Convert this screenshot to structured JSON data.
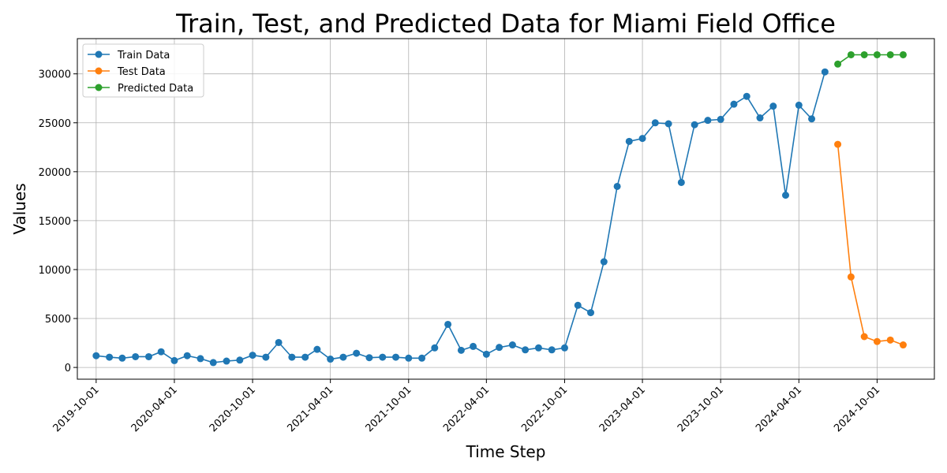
{
  "chart_data": {
    "type": "line",
    "title": "Train, Test, and Predicted Data for Miami Field Office",
    "xlabel": "Time Step",
    "ylabel": "Values",
    "x_ticks": [
      "2019-10-01",
      "2020-04-01",
      "2020-10-01",
      "2021-04-01",
      "2021-10-01",
      "2022-04-01",
      "2022-10-01",
      "2023-04-01",
      "2023-10-01",
      "2024-04-01",
      "2024-10-01"
    ],
    "y_ticks": [
      0,
      5000,
      10000,
      15000,
      20000,
      25000,
      30000
    ],
    "y_tick_labels": [
      "0",
      "5000",
      "10000",
      "15000",
      "20000",
      "25000",
      "30000"
    ],
    "xlim": [
      "2019-08-18",
      "2025-02-12"
    ],
    "ylim": [
      -1200,
      33600
    ],
    "grid": true,
    "legend_position": "top-left",
    "series": [
      {
        "name": "Train Data",
        "color": "#1f77b4",
        "x": [
          "2019-10-01",
          "2019-11-01",
          "2019-12-01",
          "2020-01-01",
          "2020-02-01",
          "2020-03-01",
          "2020-04-01",
          "2020-05-01",
          "2020-06-01",
          "2020-07-01",
          "2020-08-01",
          "2020-09-01",
          "2020-10-01",
          "2020-11-01",
          "2020-12-01",
          "2021-01-01",
          "2021-02-01",
          "2021-03-01",
          "2021-04-01",
          "2021-05-01",
          "2021-06-01",
          "2021-07-01",
          "2021-08-01",
          "2021-09-01",
          "2021-10-01",
          "2021-11-01",
          "2021-12-01",
          "2022-01-01",
          "2022-02-01",
          "2022-03-01",
          "2022-04-01",
          "2022-05-01",
          "2022-06-01",
          "2022-07-01",
          "2022-08-01",
          "2022-09-01",
          "2022-10-01",
          "2022-11-01",
          "2022-12-01",
          "2023-01-01",
          "2023-02-01",
          "2023-03-01",
          "2023-04-01",
          "2023-05-01",
          "2023-06-01",
          "2023-07-01",
          "2023-08-01",
          "2023-09-01",
          "2023-10-01",
          "2023-11-01",
          "2023-12-01",
          "2024-01-01",
          "2024-02-01",
          "2024-03-01",
          "2024-04-01",
          "2024-05-01",
          "2024-06-01"
        ],
        "values": [
          1200,
          1050,
          950,
          1100,
          1100,
          1600,
          700,
          1200,
          900,
          500,
          650,
          750,
          1250,
          1050,
          2550,
          1050,
          1050,
          1850,
          850,
          1050,
          1450,
          1000,
          1050,
          1050,
          950,
          950,
          2000,
          4400,
          1750,
          2150,
          1350,
          2050,
          2300,
          1800,
          2000,
          1800,
          2000,
          6350,
          5600,
          10800,
          18500,
          23100,
          23400,
          25000,
          24900,
          18900,
          24800,
          25250,
          25350,
          26900,
          27700,
          25500,
          26700,
          17600,
          26800,
          25400,
          30200
        ]
      },
      {
        "name": "Test Data",
        "color": "#ff7f0e",
        "x": [
          "2024-07-01",
          "2024-08-01",
          "2024-09-01",
          "2024-10-01",
          "2024-11-01",
          "2024-12-01"
        ],
        "values": [
          22800,
          9250,
          3150,
          2650,
          2800,
          2300
        ]
      },
      {
        "name": "Predicted Data",
        "color": "#2ca02c",
        "x": [
          "2024-07-01",
          "2024-08-01",
          "2024-09-01",
          "2024-10-01",
          "2024-11-01",
          "2024-12-01"
        ],
        "values": [
          31000,
          31950,
          31950,
          31950,
          31950,
          31950
        ]
      }
    ]
  }
}
